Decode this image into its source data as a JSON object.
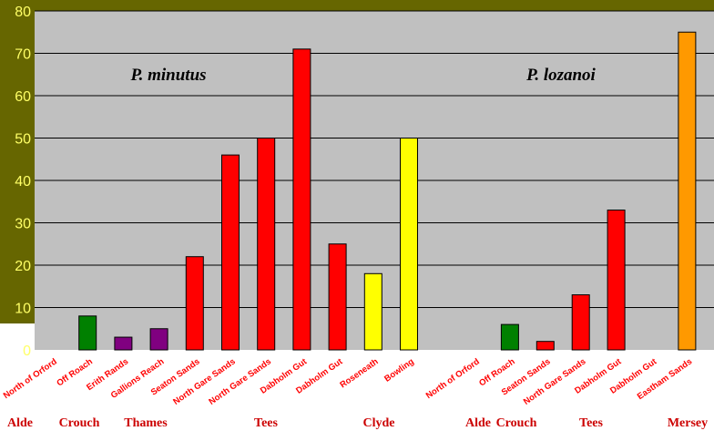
{
  "chart_data": {
    "type": "bar",
    "title": "",
    "xlabel": "",
    "ylabel": "",
    "ylim": [
      0,
      80
    ],
    "yticks": [
      0,
      10,
      20,
      30,
      40,
      50,
      60,
      70,
      80
    ],
    "grid": true,
    "annotations": [
      "P. minutus",
      "P. lozanoi"
    ],
    "bars": [
      {
        "label": "North of Orford",
        "value": 0,
        "color": "#ff0000",
        "species": "P. minutus",
        "group": "Alde"
      },
      {
        "label": "Off Roach",
        "value": 8,
        "color": "#008000",
        "species": "P. minutus",
        "group": "Crouch"
      },
      {
        "label": "Erith Rands",
        "value": 3,
        "color": "#800080",
        "species": "P. minutus",
        "group": "Thames"
      },
      {
        "label": "Gallions Reach",
        "value": 5,
        "color": "#800080",
        "species": "P. minutus",
        "group": "Thames"
      },
      {
        "label": "Seaton Sands",
        "value": 22,
        "color": "#ff0000",
        "species": "P. minutus",
        "group": "Tees"
      },
      {
        "label": "North Gare Sands",
        "value": 46,
        "color": "#ff0000",
        "species": "P. minutus",
        "group": "Tees"
      },
      {
        "label": "North Gare Sands",
        "value": 50,
        "color": "#ff0000",
        "species": "P. minutus",
        "group": "Tees"
      },
      {
        "label": "Dabholm Gut",
        "value": 71,
        "color": "#ff0000",
        "species": "P. minutus",
        "group": "Tees"
      },
      {
        "label": "Dabholm Gut",
        "value": 25,
        "color": "#ff0000",
        "species": "P. minutus",
        "group": "Tees"
      },
      {
        "label": "Roseneath",
        "value": 18,
        "color": "#ffff00",
        "species": "P. minutus",
        "group": "Clyde"
      },
      {
        "label": "Bowling",
        "value": 50,
        "color": "#ffff00",
        "species": "P. minutus",
        "group": "Clyde"
      },
      {
        "label": "North of Orford",
        "value": 0,
        "color": "#ff0000",
        "species": "P. lozanoi",
        "group": "Alde"
      },
      {
        "label": "Off Roach",
        "value": 6,
        "color": "#008000",
        "species": "P. lozanoi",
        "group": "Crouch"
      },
      {
        "label": "Seaton Sands",
        "value": 2,
        "color": "#ff0000",
        "species": "P. lozanoi",
        "group": "Tees"
      },
      {
        "label": "North Gare Sands",
        "value": 13,
        "color": "#ff0000",
        "species": "P. lozanoi",
        "group": "Tees"
      },
      {
        "label": "Dabholm Gut",
        "value": 33,
        "color": "#ff0000",
        "species": "P. lozanoi",
        "group": "Tees"
      },
      {
        "label": "Dabholm Gut",
        "value": 0,
        "color": "#ff0000",
        "species": "P. lozanoi",
        "group": "Tees"
      },
      {
        "label": "Eastham Sands",
        "value": 75,
        "color": "#ff9900",
        "species": "P. lozanoi",
        "group": "Mersey"
      }
    ],
    "groups": [
      "Alde",
      "Crouch",
      "Thames",
      "Tees",
      "Clyde",
      "Alde",
      "Crouch",
      "Tees",
      "Mersey"
    ]
  }
}
